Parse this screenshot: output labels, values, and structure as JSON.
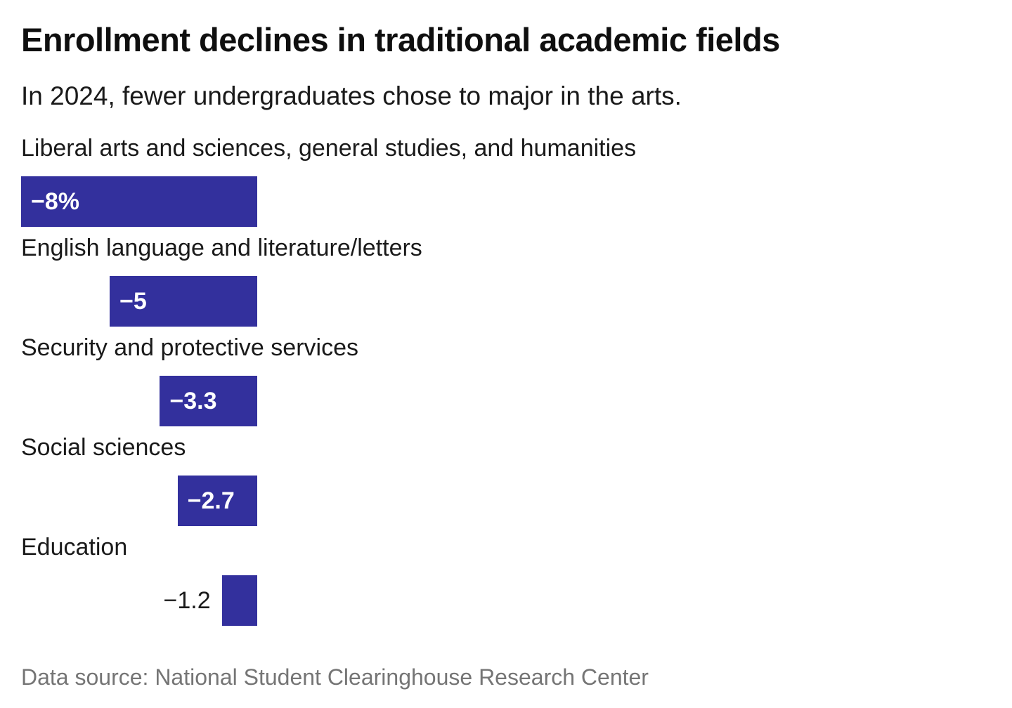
{
  "chart_data": {
    "type": "bar",
    "orientation": "horizontal",
    "title": "Enrollment declines in traditional academic fields",
    "subtitle": "In 2024, fewer undergraduates chose to major in the arts.",
    "source": "Data source: National Student Clearinghouse Research Center",
    "categories": [
      "Liberal arts and sciences, general studies, and humanities",
      "English language and literature/letters",
      "Security and protective services",
      "Social sciences",
      "Education"
    ],
    "values": [
      -8,
      -5,
      -3.3,
      -2.7,
      -1.2
    ],
    "value_labels": [
      "−8%",
      "−5",
      "−3.3",
      "−2.7",
      "−1.2"
    ],
    "label_inside": [
      true,
      true,
      true,
      true,
      false
    ],
    "unit": "%",
    "xlim": [
      -8,
      0
    ],
    "bar_color": "#33309d",
    "value_label_color_inside": "#ffffff",
    "value_label_color_outside": "#1a1a1a",
    "title_color": "#0f0f0f",
    "text_color": "#1a1a1a",
    "source_color": "#757575",
    "grid": "off",
    "legend": "none"
  }
}
